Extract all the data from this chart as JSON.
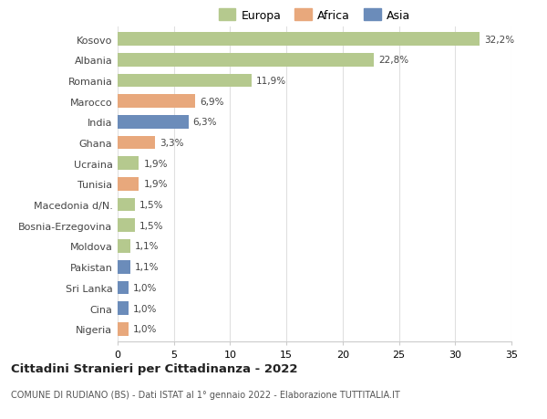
{
  "countries": [
    "Kosovo",
    "Albania",
    "Romania",
    "Marocco",
    "India",
    "Ghana",
    "Ucraina",
    "Tunisia",
    "Macedonia d/N.",
    "Bosnia-Erzegovina",
    "Moldova",
    "Pakistan",
    "Sri Lanka",
    "Cina",
    "Nigeria"
  ],
  "values": [
    32.2,
    22.8,
    11.9,
    6.9,
    6.3,
    3.3,
    1.9,
    1.9,
    1.5,
    1.5,
    1.1,
    1.1,
    1.0,
    1.0,
    1.0
  ],
  "labels": [
    "32,2%",
    "22,8%",
    "11,9%",
    "6,9%",
    "6,3%",
    "3,3%",
    "1,9%",
    "1,9%",
    "1,5%",
    "1,5%",
    "1,1%",
    "1,1%",
    "1,0%",
    "1,0%",
    "1,0%"
  ],
  "continents": [
    "Europa",
    "Europa",
    "Europa",
    "Africa",
    "Asia",
    "Africa",
    "Europa",
    "Africa",
    "Europa",
    "Europa",
    "Europa",
    "Asia",
    "Asia",
    "Asia",
    "Africa"
  ],
  "colors": {
    "Europa": "#b5c98e",
    "Africa": "#e8a87c",
    "Asia": "#6b8cba"
  },
  "title": "Cittadini Stranieri per Cittadinanza - 2022",
  "subtitle": "COMUNE DI RUDIANO (BS) - Dati ISTAT al 1° gennaio 2022 - Elaborazione TUTTITALIA.IT",
  "legend_labels": [
    "Europa",
    "Africa",
    "Asia"
  ],
  "legend_colors": [
    "#b5c98e",
    "#e8a87c",
    "#6b8cba"
  ],
  "xlim": [
    0,
    35
  ],
  "xticks": [
    0,
    5,
    10,
    15,
    20,
    25,
    30,
    35
  ],
  "background_color": "#ffffff",
  "grid_color": "#e0e0e0"
}
